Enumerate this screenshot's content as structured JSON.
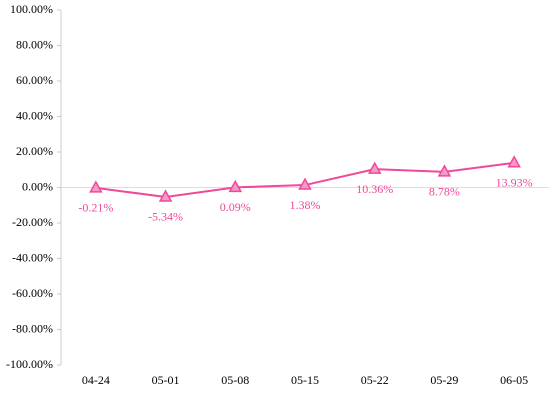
{
  "chart_data": {
    "type": "line",
    "categories": [
      "04-24",
      "05-01",
      "05-08",
      "05-15",
      "05-22",
      "05-29",
      "06-05"
    ],
    "series": [
      {
        "color": "#f0489a",
        "values": [
          -0.21,
          -5.34,
          0.09,
          1.38,
          10.36,
          8.78,
          13.93
        ],
        "value_labels": [
          "-0.21%",
          "-5.34%",
          "0.09%",
          "1.38%",
          "10.36%",
          "8.78%",
          "13.93%"
        ]
      }
    ],
    "ylim": [
      -100,
      100
    ],
    "yticks": [
      {
        "value": -100,
        "label": "-100.00%"
      },
      {
        "value": -80,
        "label": "-80.00%"
      },
      {
        "value": -60,
        "label": "-60.00%"
      },
      {
        "value": -40,
        "label": "-40.00%"
      },
      {
        "value": -20,
        "label": "-20.00%"
      },
      {
        "value": 0,
        "label": "0.00%"
      },
      {
        "value": 20,
        "label": "20.00%"
      },
      {
        "value": 40,
        "label": "40.00%"
      },
      {
        "value": 60,
        "label": "60.00%"
      },
      {
        "value": 80,
        "label": "80.00%"
      },
      {
        "value": 100,
        "label": "100.00%"
      }
    ]
  }
}
